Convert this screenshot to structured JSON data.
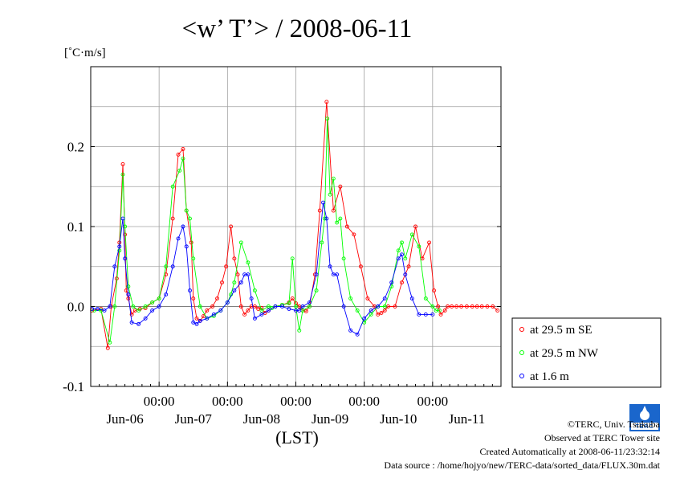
{
  "chart_data": {
    "type": "line",
    "title": "<w’ T’> / 2008-06-11",
    "ylabel": "[˚C·m/s]",
    "xlabel": "(LST)",
    "ylim": [
      -0.1,
      0.3
    ],
    "yticks": [
      -0.1,
      0.0,
      0.1,
      0.2
    ],
    "ytick_labels": [
      "-0.1",
      "0.0",
      "0.1",
      "0.2"
    ],
    "xlim": [
      0,
      6
    ],
    "x_unit": "days from 2008-06-05 12:00 LST",
    "major_ticks": [
      {
        "x": 1,
        "label": "00:00",
        "day": "Jun-06"
      },
      {
        "x": 2,
        "label": "00:00",
        "day": "Jun-07"
      },
      {
        "x": 3,
        "label": "00:00",
        "day": "Jun-08"
      },
      {
        "x": 4,
        "label": "00:00",
        "day": "Jun-09"
      },
      {
        "x": 5,
        "label": "00:00",
        "day": "Jun-10"
      }
    ],
    "trailing_day_label": {
      "x": 5.5,
      "day": "Jun-11"
    },
    "grid": true,
    "legend_position": "right",
    "series": [
      {
        "name": "at 29.5 m SE",
        "color": "#ff0000",
        "x": [
          0.02,
          0.15,
          0.25,
          0.3,
          0.38,
          0.42,
          0.47,
          0.5,
          0.52,
          0.55,
          0.6,
          0.65,
          0.72,
          0.8,
          0.9,
          1.0,
          1.1,
          1.2,
          1.28,
          1.35,
          1.4,
          1.47,
          1.5,
          1.55,
          1.6,
          1.65,
          1.7,
          1.78,
          1.85,
          1.92,
          1.98,
          2.05,
          2.1,
          2.15,
          2.2,
          2.25,
          2.3,
          2.35,
          2.4,
          2.45,
          2.5,
          2.55,
          2.6,
          2.7,
          2.8,
          2.9,
          2.95,
          3.0,
          3.05,
          3.1,
          3.15,
          3.2,
          3.28,
          3.35,
          3.45,
          3.55,
          3.65,
          3.75,
          3.85,
          3.95,
          4.05,
          4.15,
          4.2,
          4.25,
          4.3,
          4.35,
          4.45,
          4.55,
          4.65,
          4.75,
          4.85,
          4.95,
          5.02,
          5.08,
          5.12,
          5.18,
          5.22,
          5.28,
          5.35,
          5.42,
          5.5,
          5.58,
          5.65,
          5.72,
          5.8,
          5.88,
          5.95
        ],
        "y": [
          -0.005,
          -0.003,
          -0.052,
          0.0,
          0.035,
          0.08,
          0.178,
          0.09,
          0.02,
          0.01,
          -0.01,
          -0.005,
          -0.003,
          -0.002,
          0.005,
          0.01,
          0.04,
          0.11,
          0.19,
          0.197,
          0.12,
          0.08,
          0.01,
          -0.015,
          -0.018,
          -0.012,
          -0.005,
          0.0,
          0.01,
          0.03,
          0.05,
          0.1,
          0.06,
          0.04,
          0.0,
          -0.01,
          -0.005,
          0.0,
          0.0,
          -0.003,
          -0.002,
          -0.008,
          -0.005,
          0.0,
          0.002,
          0.005,
          0.01,
          0.004,
          0.0,
          -0.005,
          -0.006,
          0.0,
          0.04,
          0.12,
          0.256,
          0.12,
          0.15,
          0.1,
          0.09,
          0.05,
          0.01,
          0.0,
          -0.01,
          -0.008,
          -0.005,
          0.0,
          0.0,
          0.03,
          0.05,
          0.1,
          0.06,
          0.08,
          0.02,
          0.0,
          -0.01,
          -0.005,
          0.0,
          0.0,
          0.0,
          0.0,
          0.0,
          0.0,
          0.0,
          0.0,
          0.0,
          0.0,
          -0.005
        ]
      },
      {
        "name": "at 29.5 m NW",
        "color": "#00ff00",
        "x": [
          0.05,
          0.15,
          0.28,
          0.35,
          0.42,
          0.47,
          0.5,
          0.55,
          0.62,
          0.7,
          0.8,
          0.9,
          1.0,
          1.1,
          1.2,
          1.3,
          1.35,
          1.4,
          1.45,
          1.5,
          1.6,
          1.7,
          1.8,
          1.9,
          2.0,
          2.05,
          2.1,
          2.2,
          2.3,
          2.4,
          2.5,
          2.6,
          2.65,
          2.7,
          2.8,
          2.9,
          2.95,
          3.0,
          3.05,
          3.1,
          3.2,
          3.3,
          3.38,
          3.42,
          3.46,
          3.5,
          3.55,
          3.6,
          3.65,
          3.7,
          3.8,
          3.9,
          4.0,
          4.1,
          4.2,
          4.3,
          4.4,
          4.5,
          4.55,
          4.6,
          4.7,
          4.8,
          4.9,
          5.0,
          5.05,
          5.1
        ],
        "y": [
          -0.005,
          -0.005,
          -0.045,
          0.0,
          0.07,
          0.165,
          0.1,
          0.025,
          0.0,
          -0.005,
          0.0,
          0.005,
          0.01,
          0.05,
          0.15,
          0.17,
          0.185,
          0.12,
          0.11,
          0.06,
          0.0,
          -0.015,
          -0.012,
          -0.005,
          0.005,
          0.015,
          0.03,
          0.08,
          0.055,
          0.02,
          -0.005,
          0.0,
          -0.002,
          0.0,
          0.002,
          0.004,
          0.06,
          0.0,
          -0.03,
          -0.005,
          0.0,
          0.02,
          0.08,
          0.11,
          0.235,
          0.14,
          0.16,
          0.105,
          0.11,
          0.06,
          0.01,
          -0.005,
          -0.02,
          -0.01,
          0.0,
          0.0,
          0.025,
          0.07,
          0.08,
          0.06,
          0.09,
          0.075,
          0.01,
          0.0,
          -0.005,
          -0.005
        ]
      },
      {
        "name": "at 1.6 m",
        "color": "#0000ff",
        "x": [
          0.02,
          0.1,
          0.2,
          0.28,
          0.35,
          0.42,
          0.47,
          0.5,
          0.55,
          0.6,
          0.7,
          0.8,
          0.9,
          1.0,
          1.1,
          1.2,
          1.28,
          1.35,
          1.4,
          1.45,
          1.5,
          1.55,
          1.6,
          1.7,
          1.8,
          1.9,
          2.0,
          2.1,
          2.2,
          2.25,
          2.3,
          2.35,
          2.4,
          2.5,
          2.6,
          2.7,
          2.8,
          2.9,
          3.0,
          3.05,
          3.1,
          3.2,
          3.3,
          3.4,
          3.45,
          3.5,
          3.55,
          3.6,
          3.7,
          3.8,
          3.9,
          4.0,
          4.1,
          4.2,
          4.3,
          4.4,
          4.5,
          4.55,
          4.6,
          4.7,
          4.8,
          4.9,
          5.0
        ],
        "y": [
          -0.003,
          -0.003,
          -0.005,
          0.0,
          0.05,
          0.075,
          0.11,
          0.06,
          0.015,
          -0.02,
          -0.022,
          -0.015,
          -0.005,
          0.0,
          0.015,
          0.05,
          0.085,
          0.1,
          0.075,
          0.02,
          -0.02,
          -0.022,
          -0.018,
          -0.015,
          -0.01,
          -0.005,
          0.005,
          0.02,
          0.03,
          0.04,
          0.04,
          0.01,
          -0.015,
          -0.01,
          -0.005,
          0.0,
          0.0,
          -0.003,
          -0.005,
          -0.005,
          0.0,
          0.005,
          0.04,
          0.13,
          0.11,
          0.05,
          0.04,
          0.04,
          0.0,
          -0.03,
          -0.035,
          -0.015,
          -0.005,
          0.0,
          0.01,
          0.03,
          0.06,
          0.065,
          0.04,
          0.01,
          -0.01,
          -0.01,
          -0.01
        ]
      }
    ]
  },
  "footer": {
    "copyright": "©TERC, Univ. Tsukuba",
    "observed": "Observed at TERC Tower site",
    "created": "Created Automatically at 2008-06-11/23:32:14",
    "source": "Data source : /home/hojyo/new/TERC-data/sorted_data/FLUX.30m.dat"
  },
  "logo": {
    "text": "TERC",
    "color": "#1a66cc"
  }
}
